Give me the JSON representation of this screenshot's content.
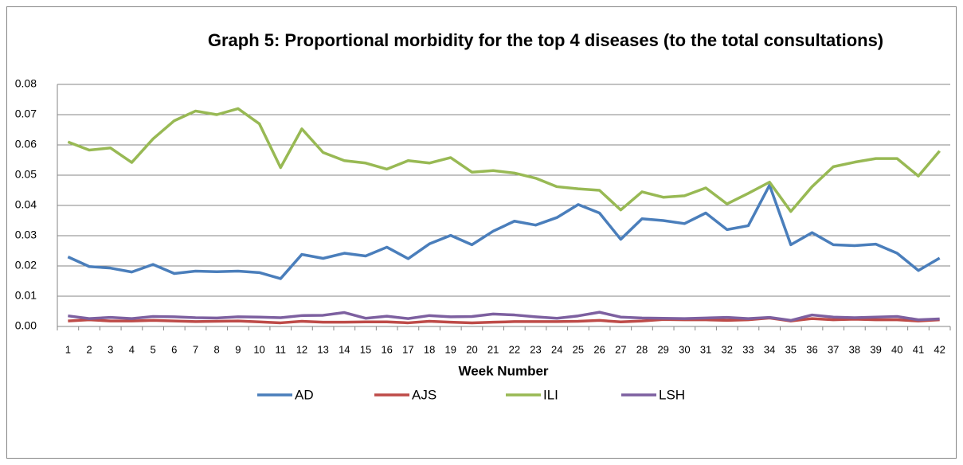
{
  "chart_data": {
    "type": "line",
    "title": "Graph 5:  Proportional morbidity for the top 4 diseases (to the total consultations)",
    "x_label": "Week Number",
    "categories": [
      1,
      2,
      3,
      4,
      5,
      6,
      7,
      8,
      9,
      10,
      11,
      12,
      13,
      14,
      15,
      16,
      17,
      18,
      19,
      20,
      21,
      22,
      23,
      24,
      25,
      26,
      27,
      28,
      29,
      30,
      31,
      32,
      33,
      34,
      35,
      36,
      37,
      38,
      39,
      40,
      41,
      42
    ],
    "series": [
      {
        "name": "AD",
        "color": "#4a7ebb",
        "values": [
          0.023,
          0.0198,
          0.0193,
          0.018,
          0.0205,
          0.0175,
          0.0183,
          0.0181,
          0.0183,
          0.0178,
          0.0158,
          0.0238,
          0.0225,
          0.0242,
          0.0233,
          0.0262,
          0.0224,
          0.0273,
          0.0301,
          0.027,
          0.0315,
          0.0348,
          0.0335,
          0.036,
          0.0403,
          0.0375,
          0.0288,
          0.0356,
          0.035,
          0.034,
          0.0375,
          0.032,
          0.0333,
          0.0467,
          0.027,
          0.031,
          0.027,
          0.0267,
          0.0272,
          0.0242,
          0.0185,
          0.0226
        ]
      },
      {
        "name": "AJS",
        "color": "#be4b48",
        "values": [
          0.0018,
          0.0022,
          0.0018,
          0.0018,
          0.002,
          0.0018,
          0.0016,
          0.0017,
          0.0018,
          0.0015,
          0.0012,
          0.0017,
          0.0014,
          0.0014,
          0.0015,
          0.0015,
          0.0012,
          0.0017,
          0.0014,
          0.0012,
          0.0014,
          0.0016,
          0.0016,
          0.0016,
          0.0017,
          0.002,
          0.0015,
          0.0018,
          0.0023,
          0.0022,
          0.0022,
          0.002,
          0.0022,
          0.0028,
          0.0018,
          0.0026,
          0.0022,
          0.0024,
          0.0022,
          0.0022,
          0.0018,
          0.0022
        ]
      },
      {
        "name": "ILI",
        "color": "#98b954",
        "values": [
          0.061,
          0.0583,
          0.059,
          0.0542,
          0.062,
          0.068,
          0.0712,
          0.07,
          0.072,
          0.067,
          0.0525,
          0.0653,
          0.0575,
          0.0548,
          0.054,
          0.052,
          0.0548,
          0.054,
          0.0558,
          0.051,
          0.0515,
          0.0507,
          0.049,
          0.0462,
          0.0455,
          0.045,
          0.0385,
          0.0445,
          0.0427,
          0.0432,
          0.0458,
          0.0405,
          0.044,
          0.0477,
          0.038,
          0.0462,
          0.0528,
          0.0543,
          0.0555,
          0.0555,
          0.0497,
          0.058
        ]
      },
      {
        "name": "LSH",
        "color": "#7d60a0",
        "values": [
          0.0035,
          0.0026,
          0.003,
          0.0026,
          0.0033,
          0.0032,
          0.0029,
          0.0028,
          0.0032,
          0.0031,
          0.0029,
          0.0036,
          0.0037,
          0.0046,
          0.0027,
          0.0034,
          0.0026,
          0.0036,
          0.0032,
          0.0033,
          0.0041,
          0.0038,
          0.0032,
          0.0027,
          0.0035,
          0.0047,
          0.0031,
          0.0028,
          0.0027,
          0.0026,
          0.0028,
          0.003,
          0.0026,
          0.003,
          0.002,
          0.0038,
          0.0031,
          0.0029,
          0.0031,
          0.0033,
          0.0022,
          0.0025
        ]
      }
    ],
    "ylim": [
      0,
      0.08
    ],
    "yticks": [
      {
        "value": 0,
        "label": "0.00"
      },
      0.01,
      0.02,
      0.03,
      0.04,
      0.05,
      0.06,
      0.07,
      0.08
    ],
    "grid": true,
    "legend": "bottom"
  }
}
